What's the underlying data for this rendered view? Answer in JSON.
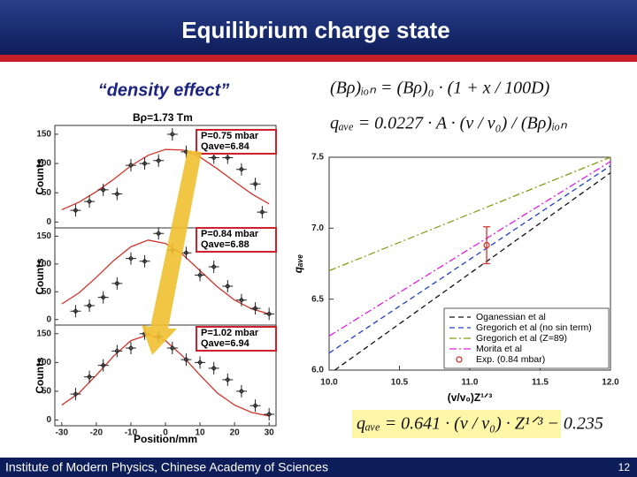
{
  "title": "Equilibrium charge state",
  "subtitle": "“density effect”",
  "formulas": [
    "(Bρ)ᵢₒₙ = (Bρ)₀ · (1 + x / 100D)",
    "qₐᵥₑ = 0.0227 · A · (v / v₀) / (Bρ)ᵢₒₙ",
    "qₐᵥₑ = 0.641 · (v / v₀) · Z¹ᐟ³ − 0.235"
  ],
  "footer": {
    "institute": "Institute of Modern Physics, Chinese Academy of Sciences",
    "page": "12"
  },
  "chart_data": [
    {
      "type": "scatter",
      "title": "Bρ=1.73 Tm",
      "annotations": [
        "P=0.75 mbar",
        "Qave=6.84"
      ],
      "ylabel": "Counts",
      "xlim": [
        -32,
        32
      ],
      "ylim": [
        -10,
        165
      ],
      "yticks": [
        0,
        50,
        100,
        150
      ],
      "points": {
        "color": "#222222",
        "x": [
          -26,
          -22,
          -18,
          -14,
          -10,
          -6,
          -2,
          2,
          6,
          10,
          14,
          18,
          22,
          26,
          28
        ],
        "y": [
          20,
          35,
          55,
          48,
          97,
          100,
          105,
          150,
          120,
          120,
          110,
          110,
          90,
          65,
          17
        ]
      },
      "fit": {
        "color": "#d0342c",
        "x": [
          -30,
          -25,
          -20,
          -15,
          -10,
          -5,
          0,
          5,
          10,
          15,
          20,
          25,
          30
        ],
        "y": [
          21,
          34,
          52,
          73,
          96,
          114,
          124,
          123,
          111,
          91,
          69,
          48,
          31
        ]
      }
    },
    {
      "type": "scatter",
      "annotations": [
        "P=0.84 mbar",
        "Qave=6.88"
      ],
      "ylabel": "Counts",
      "xlim": [
        -32,
        32
      ],
      "ylim": [
        -10,
        165
      ],
      "yticks": [
        0,
        50,
        100,
        150
      ],
      "points": {
        "color": "#222222",
        "x": [
          -26,
          -22,
          -18,
          -14,
          -10,
          -6,
          -2,
          2,
          6,
          10,
          14,
          18,
          22,
          26,
          30
        ],
        "y": [
          15,
          25,
          40,
          65,
          110,
          105,
          155,
          125,
          120,
          80,
          95,
          60,
          35,
          20,
          10
        ]
      },
      "fit": {
        "color": "#d0342c",
        "x": [
          -30,
          -25,
          -20,
          -15,
          -10,
          -5,
          0,
          5,
          10,
          15,
          20,
          25,
          30
        ],
        "y": [
          28,
          48,
          76,
          106,
          131,
          143,
          137,
          117,
          88,
          59,
          35,
          19,
          10
        ]
      }
    },
    {
      "type": "scatter",
      "annotations": [
        "P=1.02 mbar",
        "Qave=6.94"
      ],
      "ylabel": "Counts",
      "xlabel": "Position/mm",
      "xlim": [
        -32,
        32
      ],
      "ylim": [
        -10,
        165
      ],
      "yticks": [
        0,
        50,
        100,
        150
      ],
      "xticks": [
        -30,
        -20,
        -10,
        0,
        10,
        20,
        30
      ],
      "points": {
        "color": "#222222",
        "x": [
          -26,
          -22,
          -18,
          -14,
          -10,
          -6,
          -2,
          2,
          6,
          10,
          14,
          18,
          22,
          26,
          30
        ],
        "y": [
          45,
          75,
          95,
          120,
          125,
          150,
          145,
          125,
          105,
          100,
          90,
          70,
          50,
          25,
          10
        ]
      },
      "fit": {
        "color": "#d0342c",
        "x": [
          -30,
          -25,
          -20,
          -15,
          -10,
          -5,
          0,
          5,
          10,
          15,
          20,
          25,
          30
        ],
        "y": [
          26,
          47,
          78,
          111,
          138,
          148,
          138,
          111,
          78,
          47,
          26,
          13,
          7
        ]
      }
    },
    {
      "type": "line",
      "xlabel": "(v/v₀)Z¹ᐟ³",
      "ylabel": "qₐᵥₑ",
      "legend": "lower right",
      "xlim": [
        10,
        12
      ],
      "ylim": [
        6.0,
        7.5
      ],
      "xticks": [
        {
          "value": 10,
          "label": "10.0"
        },
        10.5,
        {
          "value": 11,
          "label": "11.0"
        },
        11.5,
        {
          "value": 12,
          "label": "12.0"
        }
      ],
      "yticks": [
        {
          "value": 6,
          "label": "6.0"
        },
        6.5,
        {
          "value": 7,
          "label": "7.0"
        },
        7.5
      ],
      "series": [
        {
          "name": "Oganessian et al",
          "color": "#111111",
          "dash": "dashed",
          "x": [
            10.04,
            12
          ],
          "values": [
            6.0,
            7.39
          ]
        },
        {
          "name": "Gregorich et al (no sin term)",
          "color": "#1f3fd0",
          "dash": "dashed",
          "x": [
            10,
            12
          ],
          "values": [
            6.12,
            7.44
          ]
        },
        {
          "name": "Gregorich et al (Z=89)",
          "color": "#8a9a1a",
          "dash": "dashdot",
          "x": [
            10,
            12
          ],
          "values": [
            6.7,
            7.5
          ]
        },
        {
          "name": "Morita et al",
          "color": "#e020e0",
          "dash": "dashdot",
          "x": [
            10,
            12
          ],
          "values": [
            6.24,
            7.47
          ]
        },
        {
          "name": "Exp. (0.84 mbar)",
          "color": "#d0342c",
          "marker": "circle",
          "x": [
            11.12
          ],
          "values": [
            6.88
          ],
          "error": [
            0.13
          ]
        }
      ]
    }
  ]
}
